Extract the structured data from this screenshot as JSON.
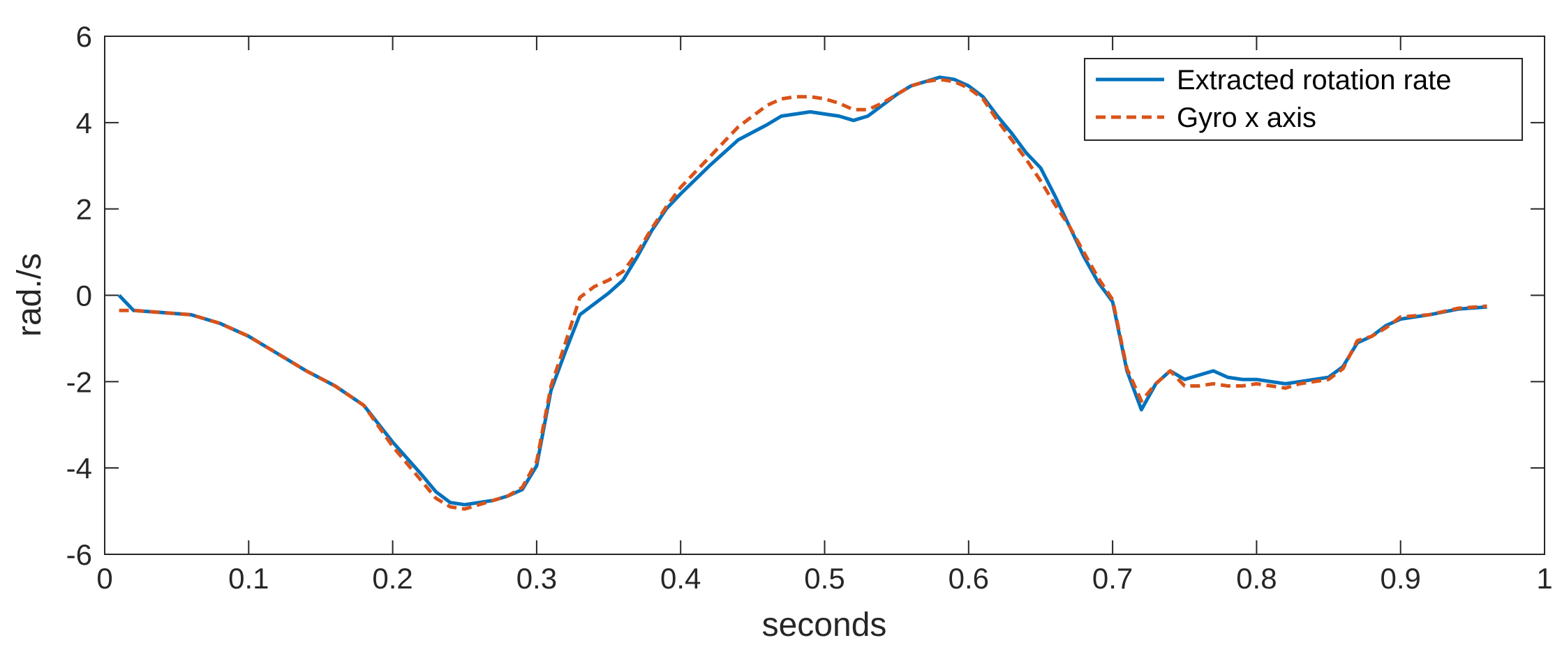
{
  "chart_data": {
    "type": "line",
    "xlabel": "seconds",
    "ylabel": "rad./s",
    "xlim": [
      0,
      1
    ],
    "ylim": [
      -6,
      6
    ],
    "x_ticks": [
      0,
      0.1,
      0.2,
      0.3,
      0.4,
      0.5,
      0.6,
      0.7,
      0.8,
      0.9,
      1
    ],
    "x_tick_labels": [
      "0",
      "0.1",
      "0.2",
      "0.3",
      "0.4",
      "0.5",
      "0.6",
      "0.7",
      "0.8",
      "0.9",
      "1"
    ],
    "y_ticks": [
      6,
      4,
      2,
      0,
      -2,
      -4,
      -6
    ],
    "y_tick_labels": [
      "6",
      "4",
      "2",
      "0",
      "-2",
      "-4",
      "-6"
    ],
    "grid": false,
    "legend_position": "top-right",
    "series": [
      {
        "name": "Extracted rotation rate",
        "color": "#0072BD",
        "style": "solid",
        "x": [
          0.01,
          0.02,
          0.04,
          0.06,
          0.08,
          0.1,
          0.12,
          0.14,
          0.16,
          0.18,
          0.2,
          0.22,
          0.23,
          0.24,
          0.25,
          0.26,
          0.27,
          0.28,
          0.29,
          0.3,
          0.31,
          0.32,
          0.33,
          0.34,
          0.35,
          0.36,
          0.37,
          0.38,
          0.39,
          0.4,
          0.42,
          0.44,
          0.46,
          0.47,
          0.48,
          0.49,
          0.5,
          0.51,
          0.52,
          0.53,
          0.54,
          0.55,
          0.56,
          0.57,
          0.58,
          0.59,
          0.6,
          0.61,
          0.62,
          0.63,
          0.64,
          0.65,
          0.66,
          0.67,
          0.68,
          0.69,
          0.7,
          0.71,
          0.72,
          0.73,
          0.74,
          0.75,
          0.76,
          0.77,
          0.78,
          0.79,
          0.8,
          0.81,
          0.82,
          0.83,
          0.84,
          0.85,
          0.86,
          0.87,
          0.88,
          0.89,
          0.9,
          0.92,
          0.94,
          0.96
        ],
        "y": [
          0.0,
          -0.35,
          -0.4,
          -0.45,
          -0.65,
          -0.95,
          -1.35,
          -1.75,
          -2.1,
          -2.55,
          -3.4,
          -4.15,
          -4.55,
          -4.8,
          -4.85,
          -4.8,
          -4.75,
          -4.65,
          -4.5,
          -3.95,
          -2.2,
          -1.3,
          -0.45,
          -0.2,
          0.05,
          0.35,
          0.9,
          1.5,
          2.0,
          2.35,
          3.0,
          3.6,
          3.95,
          4.15,
          4.2,
          4.25,
          4.2,
          4.15,
          4.05,
          4.15,
          4.4,
          4.65,
          4.85,
          4.95,
          5.05,
          5.0,
          4.85,
          4.6,
          4.15,
          3.75,
          3.3,
          2.95,
          2.3,
          1.6,
          0.9,
          0.3,
          -0.15,
          -1.75,
          -2.65,
          -2.05,
          -1.75,
          -1.95,
          -1.85,
          -1.75,
          -1.9,
          -1.95,
          -1.95,
          -2.0,
          -2.05,
          -2.0,
          -1.95,
          -1.9,
          -1.65,
          -1.1,
          -0.95,
          -0.7,
          -0.55,
          -0.45,
          -0.32,
          -0.27
        ]
      },
      {
        "name": "Gyro x axis",
        "color": "#D95319",
        "style": "dashed",
        "x": [
          0.01,
          0.02,
          0.04,
          0.06,
          0.08,
          0.1,
          0.12,
          0.14,
          0.16,
          0.18,
          0.2,
          0.22,
          0.23,
          0.24,
          0.25,
          0.26,
          0.27,
          0.28,
          0.29,
          0.3,
          0.31,
          0.32,
          0.33,
          0.34,
          0.35,
          0.36,
          0.37,
          0.38,
          0.39,
          0.4,
          0.42,
          0.44,
          0.46,
          0.47,
          0.48,
          0.49,
          0.5,
          0.51,
          0.52,
          0.53,
          0.54,
          0.55,
          0.56,
          0.57,
          0.58,
          0.59,
          0.6,
          0.61,
          0.62,
          0.63,
          0.64,
          0.65,
          0.66,
          0.67,
          0.68,
          0.69,
          0.7,
          0.71,
          0.72,
          0.73,
          0.74,
          0.75,
          0.76,
          0.77,
          0.78,
          0.79,
          0.8,
          0.81,
          0.82,
          0.83,
          0.84,
          0.85,
          0.86,
          0.87,
          0.88,
          0.89,
          0.9,
          0.92,
          0.94,
          0.96
        ],
        "y": [
          -0.35,
          -0.35,
          -0.4,
          -0.45,
          -0.65,
          -0.95,
          -1.35,
          -1.75,
          -2.1,
          -2.55,
          -3.5,
          -4.3,
          -4.7,
          -4.9,
          -4.95,
          -4.85,
          -4.75,
          -4.65,
          -4.45,
          -3.85,
          -2.1,
          -1.1,
          -0.05,
          0.2,
          0.35,
          0.55,
          1.0,
          1.55,
          2.05,
          2.5,
          3.2,
          3.9,
          4.4,
          4.55,
          4.6,
          4.6,
          4.55,
          4.45,
          4.3,
          4.3,
          4.45,
          4.65,
          4.85,
          4.95,
          5.0,
          4.95,
          4.8,
          4.55,
          4.05,
          3.6,
          3.15,
          2.65,
          2.1,
          1.6,
          1.0,
          0.4,
          -0.1,
          -1.7,
          -2.45,
          -2.05,
          -1.75,
          -2.1,
          -2.1,
          -2.05,
          -2.1,
          -2.1,
          -2.05,
          -2.1,
          -2.15,
          -2.05,
          -2.0,
          -1.95,
          -1.7,
          -1.05,
          -0.95,
          -0.75,
          -0.5,
          -0.45,
          -0.3,
          -0.25
        ]
      }
    ]
  }
}
